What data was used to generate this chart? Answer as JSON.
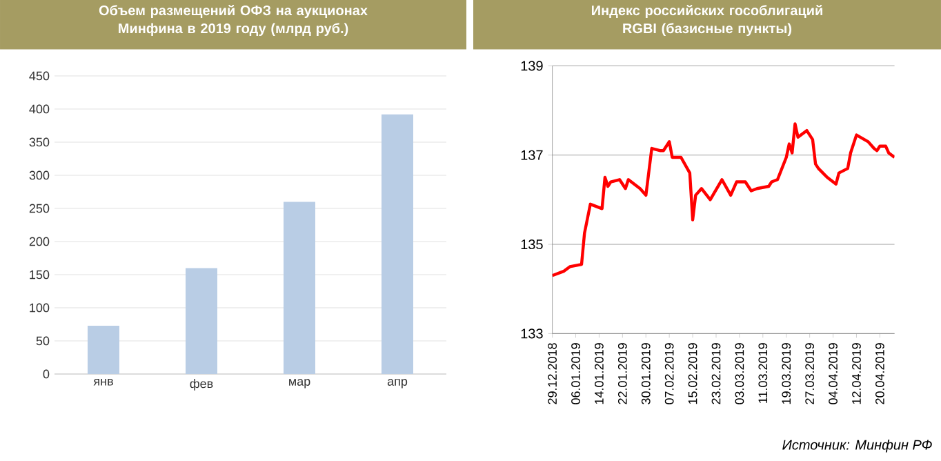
{
  "chart_data": [
    {
      "type": "bar",
      "title": "Объем размещений ОФЗ на аукционах Минфина в 2019 году (млрд руб.)",
      "categories": [
        "янв",
        "фев",
        "мар",
        "апр"
      ],
      "values": [
        73,
        160,
        260,
        392
      ],
      "color": "#b9cde5",
      "ylim": [
        0,
        450
      ],
      "yticks": [
        0,
        50,
        100,
        150,
        200,
        250,
        300,
        350,
        400,
        450
      ],
      "grid": "y"
    },
    {
      "type": "line",
      "title": "Индекс российских гособлигаций RGBI (базисные пункты)",
      "color": "#ff0000",
      "grid": "y",
      "xlim": [
        "2018-12-29",
        "2019-04-25"
      ],
      "ylim": [
        133,
        139
      ],
      "yticks": [
        133,
        135,
        137,
        139
      ],
      "xticks": [
        {
          "value": "2018-12-29",
          "label": "29.12.2018"
        },
        {
          "value": "2019-01-06",
          "label": "06.01.2019"
        },
        {
          "value": "2019-01-14",
          "label": "14.01.2019"
        },
        {
          "value": "2019-01-22",
          "label": "22.01.2019"
        },
        {
          "value": "2019-01-30",
          "label": "30.01.2019"
        },
        {
          "value": "2019-02-07",
          "label": "07.02.2019"
        },
        {
          "value": "2019-02-15",
          "label": "15.02.2019"
        },
        {
          "value": "2019-02-23",
          "label": "23.02.2019"
        },
        {
          "value": "2019-03-03",
          "label": "03.03.2019"
        },
        {
          "value": "2019-03-11",
          "label": "11.03.2019"
        },
        {
          "value": "2019-03-19",
          "label": "19.03.2019"
        },
        {
          "value": "2019-03-27",
          "label": "27.03.2019"
        },
        {
          "value": "2019-04-04",
          "label": "04.04.2019"
        },
        {
          "value": "2019-04-12",
          "label": "12.04.2019"
        },
        {
          "value": "2019-04-20",
          "label": "20.04.2019"
        }
      ],
      "x": [
        "2018-12-29",
        "2019-01-02",
        "2019-01-04",
        "2019-01-08",
        "2019-01-09",
        "2019-01-11",
        "2019-01-15",
        "2019-01-16",
        "2019-01-17",
        "2019-01-18",
        "2019-01-21",
        "2019-01-23",
        "2019-01-24",
        "2019-01-28",
        "2019-01-30",
        "2019-02-01",
        "2019-02-04",
        "2019-02-05",
        "2019-02-07",
        "2019-02-08",
        "2019-02-11",
        "2019-02-14",
        "2019-02-15",
        "2019-02-16",
        "2019-02-18",
        "2019-02-21",
        "2019-02-25",
        "2019-02-28",
        "2019-03-02",
        "2019-03-05",
        "2019-03-07",
        "2019-03-09",
        "2019-03-13",
        "2019-03-14",
        "2019-03-16",
        "2019-03-19",
        "2019-03-20",
        "2019-03-21",
        "2019-03-22",
        "2019-03-23",
        "2019-03-26",
        "2019-03-28",
        "2019-03-29",
        "2019-03-30",
        "2019-04-02",
        "2019-04-05",
        "2019-04-06",
        "2019-04-09",
        "2019-04-10",
        "2019-04-12",
        "2019-04-16",
        "2019-04-18",
        "2019-04-19",
        "2019-04-20",
        "2019-04-22",
        "2019-04-23",
        "2019-04-25"
      ],
      "values": [
        134.3,
        134.4,
        134.5,
        134.55,
        135.25,
        135.9,
        135.8,
        136.5,
        136.3,
        136.4,
        136.45,
        136.25,
        136.45,
        136.25,
        136.1,
        137.15,
        137.1,
        137.1,
        137.3,
        136.95,
        136.95,
        136.6,
        135.55,
        136.1,
        136.25,
        136.0,
        136.45,
        136.1,
        136.4,
        136.4,
        136.2,
        136.25,
        136.3,
        136.4,
        136.45,
        136.95,
        137.25,
        137.05,
        137.7,
        137.4,
        137.55,
        137.35,
        136.8,
        136.7,
        136.5,
        136.35,
        136.6,
        136.7,
        137.05,
        137.45,
        137.3,
        137.15,
        137.1,
        137.2,
        137.2,
        137.05,
        136.95
      ],
      "annotations": [
        "Источник: Минфин РФ"
      ]
    }
  ]
}
